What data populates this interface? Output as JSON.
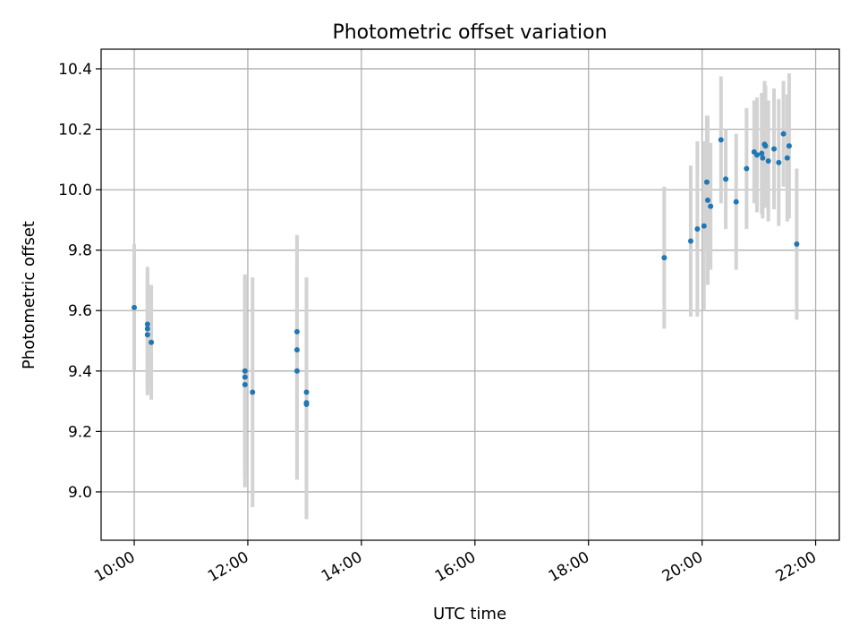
{
  "chart_data": {
    "type": "scatter",
    "title": "Photometric offset variation",
    "xlabel": "UTC time",
    "ylabel": "Photometric offset",
    "x_ticks": [
      "10:00",
      "12:00",
      "14:00",
      "16:00",
      "18:00",
      "20:00",
      "22:00"
    ],
    "y_ticks": [
      "9.0",
      "9.2",
      "9.4",
      "9.6",
      "9.8",
      "10.0",
      "10.2",
      "10.4"
    ],
    "xlim": [
      "09:25",
      "22:25"
    ],
    "ylim": [
      8.84,
      10.465
    ],
    "grid": true,
    "colors": {
      "point": "#1f77b4",
      "errorbar": "#d3d3d3",
      "grid": "#b0b0b0"
    },
    "points": [
      {
        "x": "10:00",
        "y": 9.61,
        "yerr": 0.21
      },
      {
        "x": "10:14",
        "y": 9.555,
        "yerr": 0.19
      },
      {
        "x": "10:14",
        "y": 9.54,
        "yerr": 0.2
      },
      {
        "x": "10:14",
        "y": 9.52,
        "yerr": 0.2
      },
      {
        "x": "10:18",
        "y": 9.495,
        "yerr": 0.19
      },
      {
        "x": "11:57",
        "y": 9.4,
        "yerr": 0.32
      },
      {
        "x": "11:57",
        "y": 9.38,
        "yerr": 0.33
      },
      {
        "x": "11:57",
        "y": 9.355,
        "yerr": 0.34
      },
      {
        "x": "12:05",
        "y": 9.33,
        "yerr": 0.38
      },
      {
        "x": "12:52",
        "y": 9.53,
        "yerr": 0.32
      },
      {
        "x": "12:52",
        "y": 9.47,
        "yerr": 0.34
      },
      {
        "x": "12:52",
        "y": 9.4,
        "yerr": 0.36
      },
      {
        "x": "13:02",
        "y": 9.33,
        "yerr": 0.38
      },
      {
        "x": "13:02",
        "y": 9.295,
        "yerr": 0.36
      },
      {
        "x": "13:02",
        "y": 9.29,
        "yerr": 0.38
      },
      {
        "x": "19:20",
        "y": 9.775,
        "yerr": 0.235
      },
      {
        "x": "19:48",
        "y": 9.83,
        "yerr": 0.25
      },
      {
        "x": "19:55",
        "y": 9.87,
        "yerr": 0.29
      },
      {
        "x": "20:02",
        "y": 9.88,
        "yerr": 0.28
      },
      {
        "x": "20:05",
        "y": 10.025,
        "yerr": 0.22
      },
      {
        "x": "20:06",
        "y": 9.965,
        "yerr": 0.28
      },
      {
        "x": "20:09",
        "y": 9.945,
        "yerr": 0.21
      },
      {
        "x": "20:20",
        "y": 10.165,
        "yerr": 0.21
      },
      {
        "x": "20:25",
        "y": 10.035,
        "yerr": 0.165
      },
      {
        "x": "20:36",
        "y": 9.96,
        "yerr": 0.225
      },
      {
        "x": "20:47",
        "y": 10.07,
        "yerr": 0.2
      },
      {
        "x": "20:55",
        "y": 10.125,
        "yerr": 0.17
      },
      {
        "x": "20:58",
        "y": 10.115,
        "yerr": 0.19
      },
      {
        "x": "21:03",
        "y": 10.12,
        "yerr": 0.2
      },
      {
        "x": "21:04",
        "y": 10.105,
        "yerr": 0.2
      },
      {
        "x": "21:06",
        "y": 10.15,
        "yerr": 0.21
      },
      {
        "x": "21:07",
        "y": 10.145,
        "yerr": 0.2
      },
      {
        "x": "21:10",
        "y": 10.095,
        "yerr": 0.2
      },
      {
        "x": "21:16",
        "y": 10.135,
        "yerr": 0.2
      },
      {
        "x": "21:21",
        "y": 10.09,
        "yerr": 0.21
      },
      {
        "x": "21:26",
        "y": 10.185,
        "yerr": 0.175
      },
      {
        "x": "21:30",
        "y": 10.105,
        "yerr": 0.21
      },
      {
        "x": "21:32",
        "y": 10.145,
        "yerr": 0.24
      },
      {
        "x": "21:40",
        "y": 9.82,
        "yerr": 0.25
      }
    ]
  }
}
